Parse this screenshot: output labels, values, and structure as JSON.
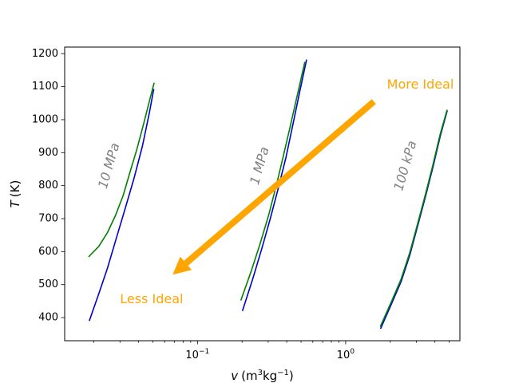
{
  "chart_data": {
    "type": "line",
    "title": "",
    "xlabel_var": "v",
    "xlabel_units_pre": "(m",
    "xlabel_sup1": "3",
    "xlabel_mid": "kg",
    "xlabel_sup2": "−1",
    "xlabel_units_post": ")",
    "ylabel_var": "T",
    "ylabel_units": "(K)",
    "xscale": "log",
    "xlim": [
      0.0127,
      5.9
    ],
    "ylim": [
      330,
      1220
    ],
    "xticks": [
      {
        "value": 0.1,
        "base": "10",
        "exp": "−1"
      },
      {
        "value": 1,
        "base": "10",
        "exp": "0"
      }
    ],
    "yticks": [
      400,
      500,
      600,
      700,
      800,
      900,
      1000,
      1100,
      1200
    ],
    "grid": false,
    "legend": "none",
    "colors": {
      "ideal": "#0000cd",
      "real": "#008000",
      "arrow": "#ffa500",
      "label": "#808080"
    },
    "series": [
      {
        "group": "10 MPa",
        "kind": "ideal",
        "color": "#0000cd",
        "x": [
          0.0186,
          0.0215,
          0.0247,
          0.0283,
          0.0325,
          0.0372,
          0.0425,
          0.0473,
          0.0507
        ],
        "y": [
          390,
          470,
          550,
          640,
          730,
          820,
          920,
          1020,
          1093
        ]
      },
      {
        "group": "10 MPa",
        "kind": "real",
        "color": "#008000",
        "x": [
          0.0184,
          0.0216,
          0.0247,
          0.028,
          0.0315,
          0.035,
          0.039,
          0.0435,
          0.0476,
          0.051
        ],
        "y": [
          584,
          616,
          658,
          710,
          770,
          840,
          910,
          990,
          1060,
          1112
        ]
      },
      {
        "group": "1 MPa",
        "kind": "ideal",
        "color": "#0000cd",
        "x": [
          0.201,
          0.237,
          0.272,
          0.31,
          0.35,
          0.395,
          0.44,
          0.49,
          0.545
        ],
        "y": [
          420,
          520,
          610,
          700,
          790,
          885,
          985,
          1085,
          1182
        ]
      },
      {
        "group": "1 MPa",
        "kind": "real",
        "color": "#008000",
        "x": [
          0.196,
          0.23,
          0.265,
          0.302,
          0.34,
          0.38,
          0.425,
          0.475,
          0.53
        ],
        "y": [
          452,
          540,
          625,
          710,
          800,
          890,
          985,
          1080,
          1175
        ]
      },
      {
        "group": "100 kPa",
        "kind": "ideal",
        "color": "#0000cd",
        "x": [
          1.72,
          2.03,
          2.37,
          2.71,
          3.07,
          3.47,
          3.9,
          4.35,
          4.85
        ],
        "y": [
          366,
          440,
          510,
          590,
          680,
          770,
          860,
          950,
          1028
        ]
      },
      {
        "group": "100 kPa",
        "kind": "real",
        "color": "#008000",
        "x": [
          1.71,
          2.02,
          2.36,
          2.7,
          3.06,
          3.46,
          3.89,
          4.34,
          4.84
        ],
        "y": [
          372,
          445,
          515,
          595,
          685,
          775,
          865,
          955,
          1030
        ]
      }
    ],
    "curve_labels": [
      {
        "text": "10 MPa",
        "x": 0.0255,
        "y": 860
      },
      {
        "text": "1 MPa",
        "x": 0.265,
        "y": 860
      },
      {
        "text": "100 kPa",
        "x": 2.55,
        "y": 860
      }
    ],
    "arrow": {
      "from": {
        "x": 1.55,
        "y": 1055
      },
      "to": {
        "x": 0.068,
        "y": 530
      }
    },
    "annotations": [
      {
        "text": "More Ideal",
        "x": 1.9,
        "y": 1105
      },
      {
        "text": "Less Ideal",
        "x": 0.03,
        "y": 455
      }
    ]
  }
}
